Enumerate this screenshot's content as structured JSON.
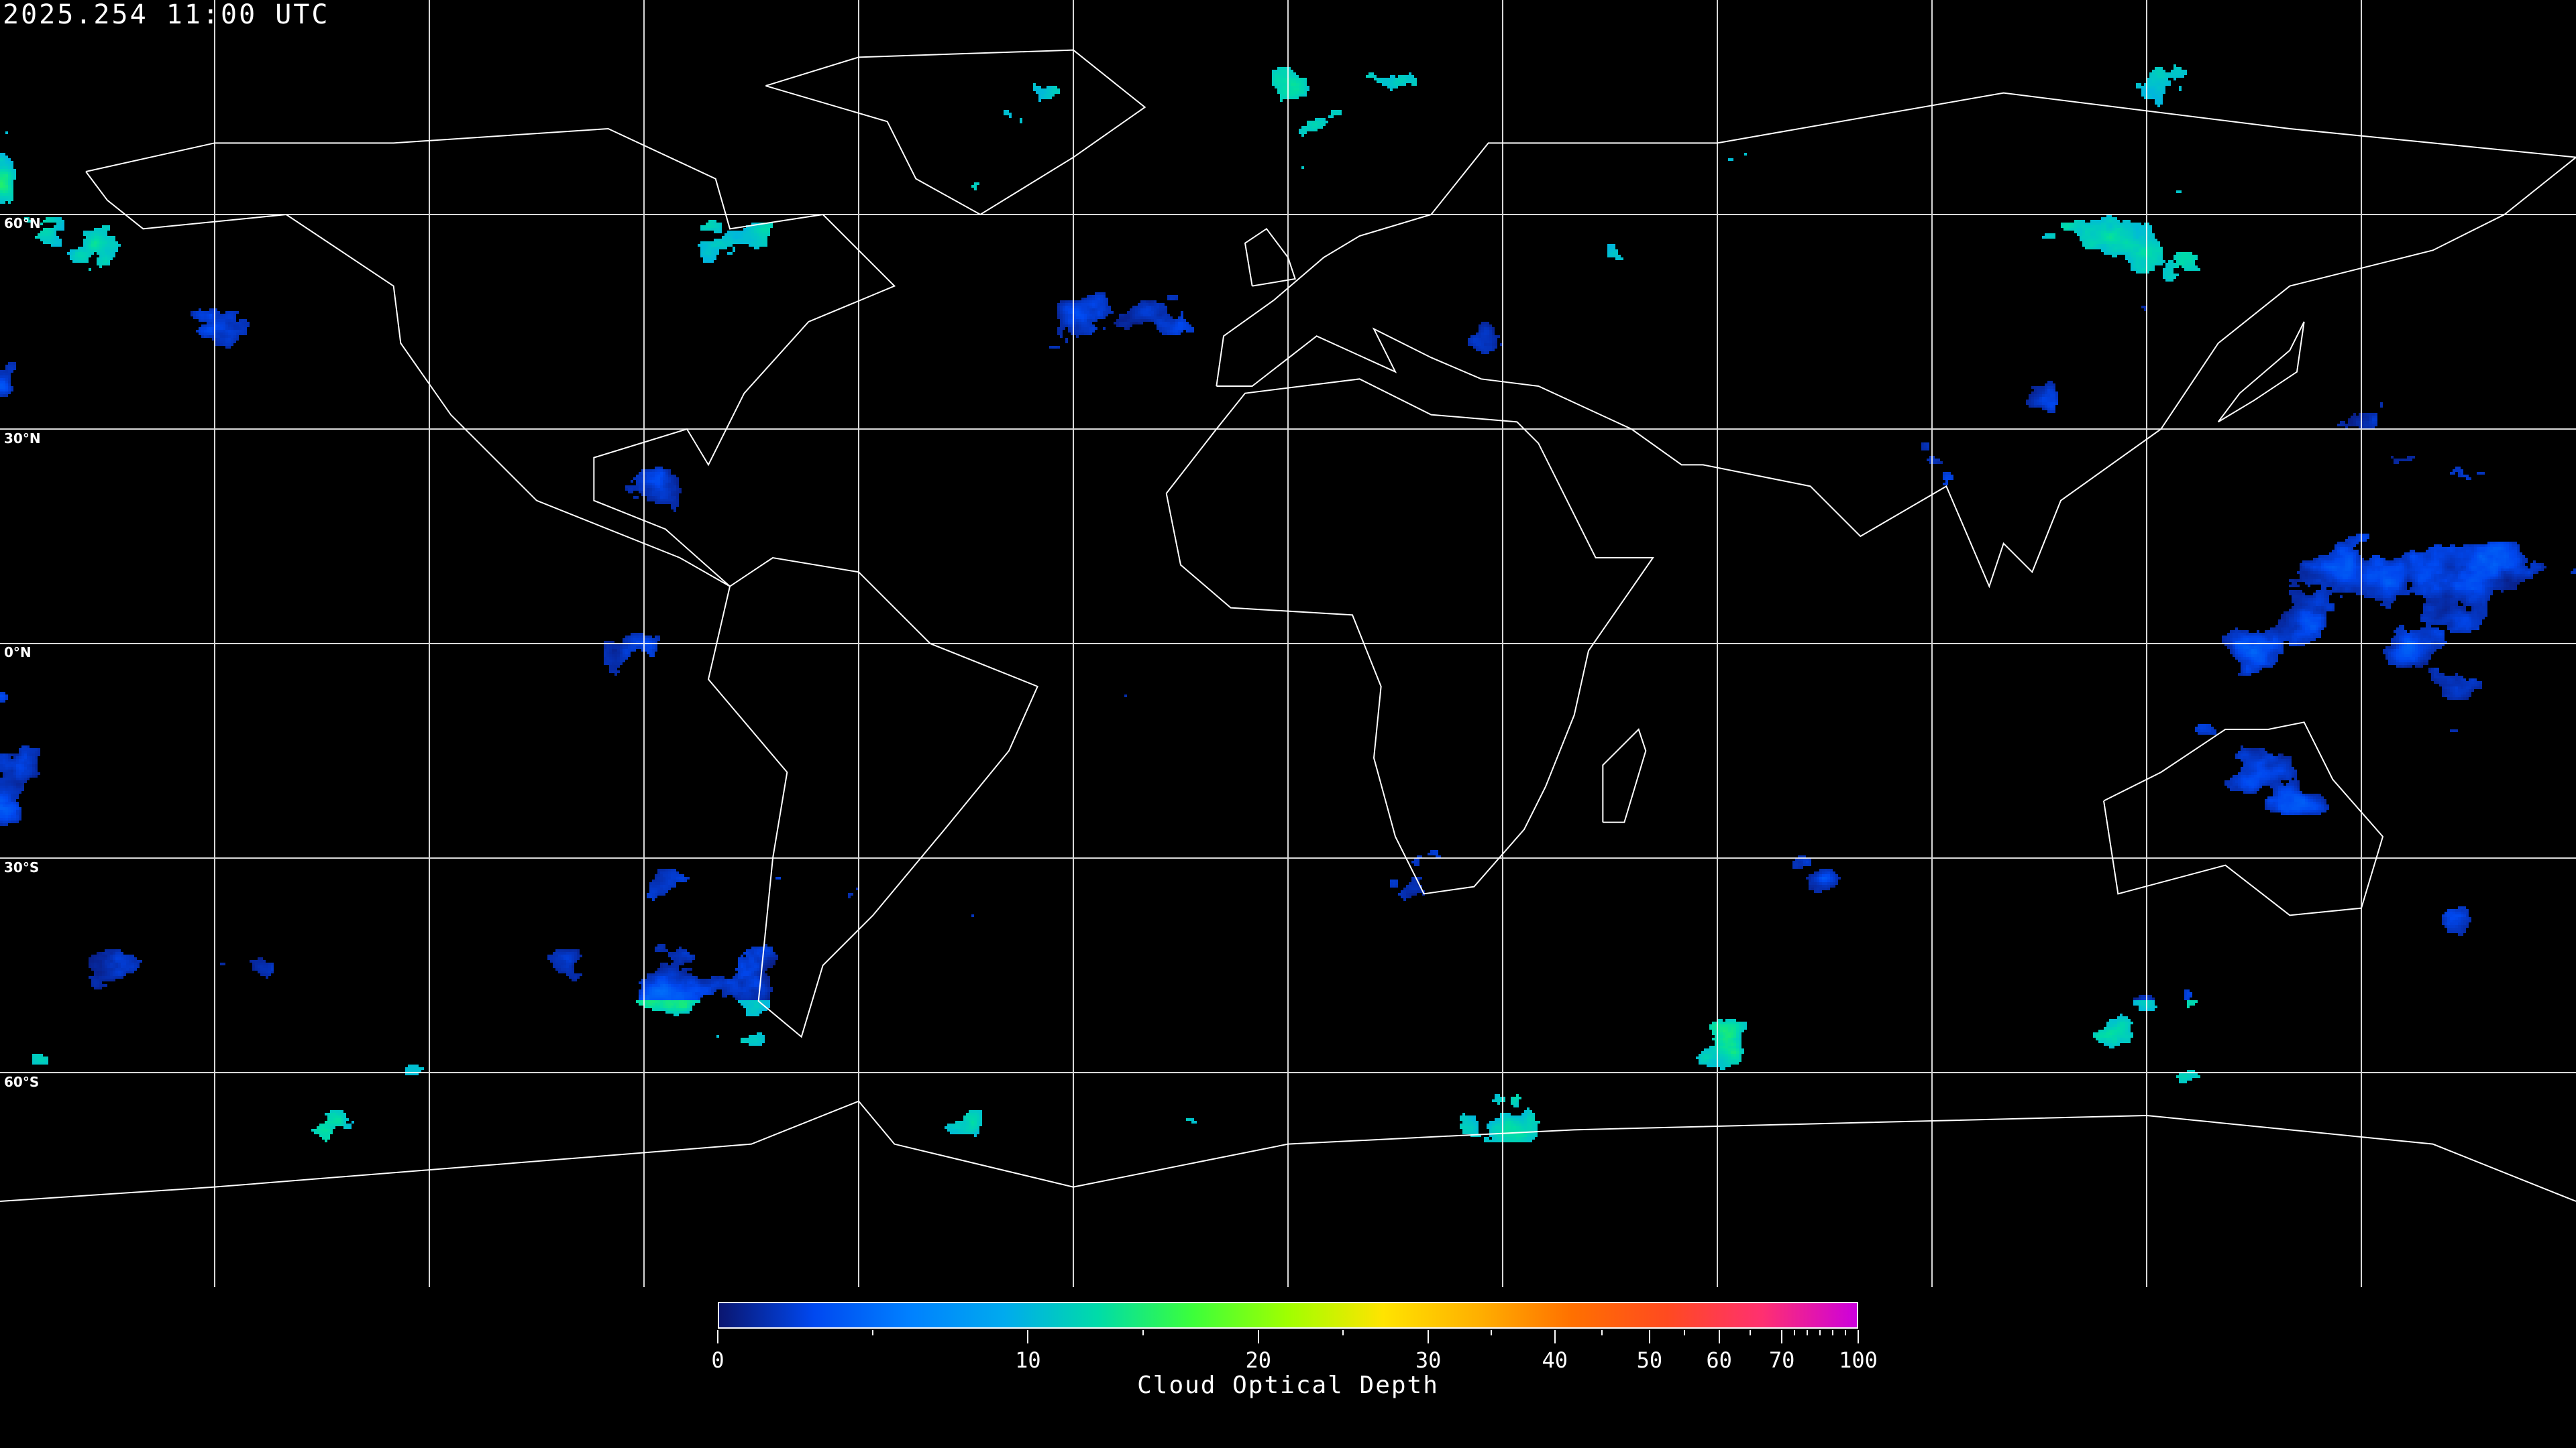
{
  "title": "2025.254 11:00 UTC",
  "map": {
    "projection": "equirectangular",
    "graticule_spacing_deg": 30,
    "lat_labels": [
      "60°N",
      "30°N",
      "0°N",
      "30°S",
      "60°S"
    ],
    "background_color": "#000000",
    "coastline_color": "#ffffff"
  },
  "colorbar": {
    "label": "Cloud Optical Depth",
    "range": [
      0,
      100
    ],
    "tick_labels": [
      "0",
      "10",
      "20",
      "30",
      "40",
      "50",
      "60",
      "70",
      "100"
    ],
    "tick_values": [
      0,
      10,
      20,
      30,
      40,
      50,
      60,
      70,
      100
    ],
    "minor_tick_values": [
      5,
      15,
      25,
      35,
      45,
      55,
      65,
      75,
      80,
      85,
      90,
      95
    ],
    "colormap": [
      "#0a1670",
      "#0048f0",
      "#0080ff",
      "#00aaee",
      "#00dca8",
      "#3cff3a",
      "#a0ff00",
      "#ffe400",
      "#ffb000",
      "#ff7000",
      "#ff4a20",
      "#ff3070",
      "#cc00dd"
    ]
  }
}
